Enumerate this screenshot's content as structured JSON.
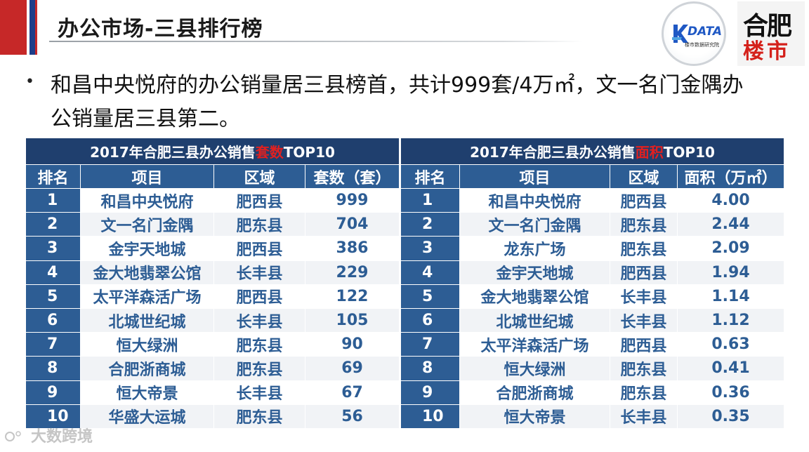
{
  "header": {
    "title": "办公市场-三县排行榜"
  },
  "logos": {
    "kdata_text": "DATA",
    "kdata_sub": "楼市数据研究院",
    "hefei_line1": "合肥",
    "hefei_line2": "楼市"
  },
  "bullet": {
    "text": "和昌中央悦府的办公销量居三县榜首，共计999套/4万㎡，文一名门金隅办公销量居三县第二。"
  },
  "table_left": {
    "caption_pre": "2017年合肥三县办公销售",
    "caption_hl": "套数",
    "caption_post": "TOP10",
    "headers": [
      "排名",
      "项目",
      "区域",
      "套数（套）"
    ],
    "rows": [
      {
        "rank": "1",
        "project": "和昌中央悦府",
        "area": "肥西县",
        "value": "999"
      },
      {
        "rank": "2",
        "project": "文一名门金隅",
        "area": "肥东县",
        "value": "704"
      },
      {
        "rank": "3",
        "project": "金宇天地城",
        "area": "肥西县",
        "value": "386"
      },
      {
        "rank": "4",
        "project": "金大地翡翠公馆",
        "area": "长丰县",
        "value": "229"
      },
      {
        "rank": "5",
        "project": "太平洋森活广场",
        "area": "肥西县",
        "value": "122"
      },
      {
        "rank": "6",
        "project": "北城世纪城",
        "area": "长丰县",
        "value": "105"
      },
      {
        "rank": "7",
        "project": "恒大绿洲",
        "area": "肥东县",
        "value": "90"
      },
      {
        "rank": "8",
        "project": "合肥浙商城",
        "area": "肥东县",
        "value": "69"
      },
      {
        "rank": "9",
        "project": "恒大帝景",
        "area": "长丰县",
        "value": "67"
      },
      {
        "rank": "10",
        "project": "华盛大运城",
        "area": "肥东县",
        "value": "56"
      }
    ]
  },
  "table_right": {
    "caption_pre": "2017年合肥三县办公销售",
    "caption_hl": "面积",
    "caption_post": "TOP10",
    "headers": [
      "排名",
      "项目",
      "区域",
      "面积（万㎡）"
    ],
    "rows": [
      {
        "rank": "1",
        "project": "和昌中央悦府",
        "area": "肥西县",
        "value": "4.00"
      },
      {
        "rank": "2",
        "project": "文一名门金隅",
        "area": "肥东县",
        "value": "2.44"
      },
      {
        "rank": "3",
        "project": "龙东广场",
        "area": "肥东县",
        "value": "2.09"
      },
      {
        "rank": "4",
        "project": "金宇天地城",
        "area": "肥西县",
        "value": "1.94"
      },
      {
        "rank": "5",
        "project": "金大地翡翠公馆",
        "area": "长丰县",
        "value": "1.14"
      },
      {
        "rank": "6",
        "project": "北城世纪城",
        "area": "长丰县",
        "value": "1.12"
      },
      {
        "rank": "7",
        "project": "太平洋森活广场",
        "area": "肥西县",
        "value": "0.63"
      },
      {
        "rank": "8",
        "project": "恒大绿洲",
        "area": "肥东县",
        "value": "0.41"
      },
      {
        "rank": "9",
        "project": "合肥浙商城",
        "area": "肥东县",
        "value": "0.36"
      },
      {
        "rank": "10",
        "project": "恒大帝景",
        "area": "长丰县",
        "value": "0.35"
      }
    ]
  },
  "watermark": {
    "text": "大数跨境"
  },
  "colors": {
    "header_dark": "#1f3f6e",
    "header_blue": "#2d5d94",
    "highlight_red": "#e02020",
    "stripe_red": "#c62828",
    "stripe_blue": "#1f3f8a"
  }
}
